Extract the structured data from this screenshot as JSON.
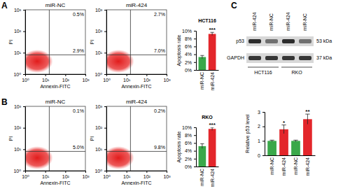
{
  "chart_data": [
    {
      "type": "scatter",
      "panel": "A",
      "title": "miR-NC",
      "x_label": "Annexin-FITC",
      "y_label": "PI",
      "log": true,
      "xlim": [
        1,
        1000
      ],
      "ylim": [
        1,
        1000
      ],
      "xticks": [
        {
          "value": 1,
          "label": "10⁰"
        },
        {
          "value": 10,
          "label": "10¹"
        },
        {
          "value": 100,
          "label": "10²"
        },
        {
          "value": 1000,
          "label": "10³"
        }
      ],
      "yticks": [
        {
          "value": 1,
          "label": "10⁰"
        },
        {
          "value": 10,
          "label": "10¹"
        },
        {
          "value": 100,
          "label": "10²"
        },
        {
          "value": 1000,
          "label": "10³"
        }
      ],
      "annotations": [
        "0.5%",
        "2.9%"
      ]
    },
    {
      "type": "scatter",
      "title": "miR-424",
      "x_label": "Annexin-FITC",
      "y_label": "PI",
      "log": true,
      "xlim": [
        1,
        1000
      ],
      "ylim": [
        1,
        1000
      ],
      "xticks": [
        {
          "value": 1,
          "label": "10⁰"
        },
        {
          "value": 10,
          "label": "10¹"
        },
        {
          "value": 100,
          "label": "10²"
        },
        {
          "value": 1000,
          "label": "10³"
        }
      ],
      "yticks": [
        {
          "value": 1,
          "label": "10⁰"
        },
        {
          "value": 10,
          "label": "10¹"
        },
        {
          "value": 100,
          "label": "10²"
        },
        {
          "value": 1000,
          "label": "10³"
        }
      ],
      "annotations": [
        "2.7%",
        "7.0%"
      ]
    },
    {
      "type": "bar",
      "title": "HCT116",
      "y_label": "Apoptosis rate",
      "categories": [
        "miR-NC",
        "miR-424"
      ],
      "values": [
        3.3,
        9.2
      ],
      "errors": [
        0.4,
        0.4
      ],
      "colors": [
        "#3aa84a",
        "#e3262b"
      ],
      "ylim": [
        0,
        10
      ],
      "yticks": [
        {
          "value": 0,
          "label": "0%"
        },
        {
          "value": 2,
          "label": "2%"
        },
        {
          "value": 4,
          "label": "4%"
        },
        {
          "value": 6,
          "label": "6%"
        },
        {
          "value": 8,
          "label": "8%"
        },
        {
          "value": 10,
          "label": "10%"
        }
      ],
      "annotations": [
        "***"
      ]
    },
    {
      "type": "scatter",
      "panel": "B",
      "title": "miR-NC",
      "x_label": "Annexin-FITC",
      "y_label": "PI",
      "log": true,
      "xlim": [
        1,
        1000
      ],
      "ylim": [
        1,
        1000
      ],
      "xticks": [
        {
          "value": 1,
          "label": "10⁰"
        },
        {
          "value": 10,
          "label": "10¹"
        },
        {
          "value": 100,
          "label": "10²"
        },
        {
          "value": 1000,
          "label": "10³"
        }
      ],
      "yticks": [
        {
          "value": 1,
          "label": "10⁰"
        },
        {
          "value": 10,
          "label": "10¹"
        },
        {
          "value": 100,
          "label": "10²"
        },
        {
          "value": 1000,
          "label": "10³"
        }
      ],
      "annotations": [
        "0.1%",
        "5.0%"
      ]
    },
    {
      "type": "scatter",
      "title": "miR-424",
      "x_label": "Annexin-FITC",
      "y_label": "PI",
      "log": true,
      "xlim": [
        1,
        1000
      ],
      "ylim": [
        1,
        1000
      ],
      "xticks": [
        {
          "value": 1,
          "label": "10⁰"
        },
        {
          "value": 10,
          "label": "10¹"
        },
        {
          "value": 100,
          "label": "10²"
        },
        {
          "value": 1000,
          "label": "10³"
        }
      ],
      "yticks": [
        {
          "value": 1,
          "label": "10⁰"
        },
        {
          "value": 10,
          "label": "10¹"
        },
        {
          "value": 100,
          "label": "10²"
        },
        {
          "value": 1000,
          "label": "10³"
        }
      ],
      "annotations": [
        "0.2%",
        "9.8%"
      ]
    },
    {
      "type": "bar",
      "title": "RKO",
      "y_label": "Apoptosis rate",
      "categories": [
        "miR-NC",
        "miR-424"
      ],
      "values": [
        5.2,
        9.6
      ],
      "errors": [
        0.6,
        0.4
      ],
      "colors": [
        "#3aa84a",
        "#e3262b"
      ],
      "ylim": [
        0,
        10
      ],
      "yticks": [
        {
          "value": 0,
          "label": "0%"
        },
        {
          "value": 2,
          "label": "2%"
        },
        {
          "value": 4,
          "label": "4%"
        },
        {
          "value": 6,
          "label": "6%"
        },
        {
          "value": 8,
          "label": "8%"
        },
        {
          "value": 10,
          "label": "10%"
        }
      ],
      "annotations": [
        "***"
      ]
    },
    {
      "type": "bar",
      "y_label": "Relative p53 level",
      "categories": [
        "miR-NC",
        "miR-424",
        "miR-NC",
        "miR-424"
      ],
      "values": [
        1,
        1.8,
        1,
        2.5
      ],
      "errors": [
        0.05,
        0.3,
        0.05,
        0.35
      ],
      "colors": [
        "#3aa84a",
        "#e3262b",
        "#3aa84a",
        "#e3262b"
      ],
      "ylim": [
        0,
        3
      ],
      "yticks": [
        0,
        1,
        2,
        3
      ],
      "annotations": [
        "*",
        "**"
      ]
    }
  ],
  "blot": {
    "panel": "C",
    "lanes": [
      "miR-424",
      "miR-NC",
      "miR-424",
      "miR-NC"
    ],
    "rows": [
      "p53",
      "GAPDH"
    ],
    "sizes": [
      "53 kDa",
      "37 kDa"
    ],
    "groups": [
      "HCT116",
      "RKO"
    ]
  }
}
